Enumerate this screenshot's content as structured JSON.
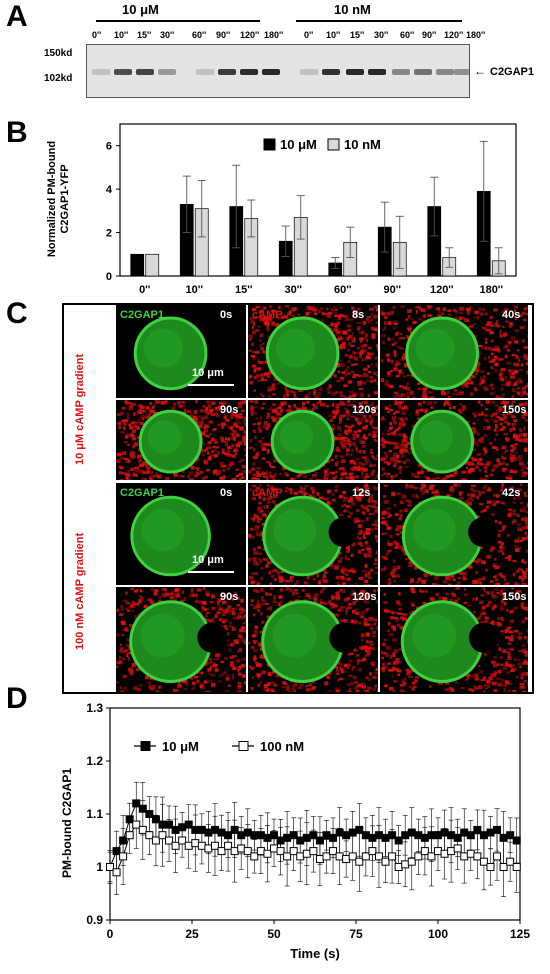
{
  "panels": {
    "a": "A",
    "b": "B",
    "c": "C",
    "d": "D"
  },
  "blot": {
    "group1": "10 μM",
    "group2": "10 nM",
    "lanes1": [
      "0''",
      "10''",
      "15''",
      "30''",
      "60''",
      "90''",
      "120''",
      "180''"
    ],
    "lanes2": [
      "0''",
      "10''",
      "15''",
      "30''",
      "60''",
      "90''",
      "120''",
      "180''"
    ],
    "mw_markers": [
      "150kd",
      "102kd"
    ],
    "protein": "C2GAP1",
    "arrow": "←",
    "band_intensity_1": [
      0.15,
      0.75,
      0.8,
      0.35,
      0.15,
      0.85,
      0.92,
      0.95
    ],
    "band_intensity_2": [
      0.15,
      0.9,
      0.95,
      0.95,
      0.45,
      0.55,
      0.45,
      0.4
    ]
  },
  "micro": {
    "side_label_top": "10 μM cAMP gradient",
    "side_label_bottom": "100 nM  cAMP gradient",
    "scale_bar": "10 μm",
    "channel_green": "C2GAP1",
    "channel_red": "cAMP",
    "top_times": [
      "0s",
      "8s",
      "40s",
      "90s",
      "120s",
      "150s"
    ],
    "bottom_times": [
      "0s",
      "12s",
      "42s",
      "90s",
      "120s",
      "150s"
    ],
    "colors": {
      "green": "#3fd13f",
      "red": "#e01010"
    }
  },
  "chart_data": [
    {
      "type": "bar",
      "categories": [
        "0''",
        "10''",
        "15''",
        "30''",
        "60''",
        "90''",
        "120''",
        "180''"
      ],
      "series": [
        {
          "name": "10 μM",
          "values": [
            1.0,
            3.3,
            3.2,
            1.6,
            0.6,
            2.25,
            3.2,
            3.9
          ],
          "errors": [
            0,
            1.3,
            1.9,
            0.7,
            0.25,
            1.15,
            1.35,
            2.3
          ],
          "color": "#000000"
        },
        {
          "name": "10 nM",
          "values": [
            1.0,
            3.1,
            2.65,
            2.7,
            1.55,
            1.55,
            0.85,
            0.7
          ],
          "errors": [
            0,
            1.3,
            0.85,
            1.0,
            0.7,
            1.2,
            0.45,
            0.6
          ],
          "color": "#d9d9d9"
        }
      ],
      "ylabel_line1": "Normalized PM-bound",
      "ylabel_line2": "C2GAP1-YFP",
      "ylim": [
        0,
        7
      ],
      "yticks": [
        "0",
        "2",
        "4",
        "6"
      ],
      "legend": "top"
    },
    {
      "type": "line",
      "xlabel": "Time (s)",
      "ylabel": "PM-bound C2GAP1",
      "xlim": [
        0,
        125
      ],
      "ylim": [
        0.9,
        1.3
      ],
      "xticks": [
        "0",
        "25",
        "50",
        "75",
        "100",
        "125"
      ],
      "yticks": [
        "0.9",
        "1",
        "1.1",
        "1.2",
        "1.3"
      ],
      "legend": "top-left",
      "series": [
        {
          "name": "10 μM",
          "marker": "filled-square",
          "y": [
            1.0,
            1.03,
            1.05,
            1.09,
            1.12,
            1.11,
            1.1,
            1.09,
            1.08,
            1.08,
            1.07,
            1.075,
            1.08,
            1.07,
            1.07,
            1.065,
            1.07,
            1.065,
            1.06,
            1.07,
            1.06,
            1.065,
            1.06,
            1.06,
            1.055,
            1.06,
            1.05,
            1.055,
            1.06,
            1.05,
            1.055,
            1.06,
            1.05,
            1.06,
            1.055,
            1.065,
            1.06,
            1.065,
            1.07,
            1.06,
            1.055,
            1.06,
            1.055,
            1.06,
            1.05,
            1.06,
            1.065,
            1.06,
            1.055,
            1.06,
            1.06,
            1.065,
            1.06,
            1.055,
            1.065,
            1.06,
            1.07,
            1.06,
            1.065,
            1.07,
            1.055,
            1.06,
            1.05
          ],
          "err": 0.04
        },
        {
          "name": "100 nM",
          "marker": "open-square",
          "y": [
            1.0,
            0.99,
            1.02,
            1.06,
            1.08,
            1.07,
            1.06,
            1.05,
            1.06,
            1.05,
            1.04,
            1.05,
            1.04,
            1.045,
            1.04,
            1.035,
            1.04,
            1.03,
            1.04,
            1.03,
            1.035,
            1.03,
            1.02,
            1.03,
            1.025,
            1.035,
            1.03,
            1.02,
            1.03,
            1.02,
            1.025,
            1.03,
            1.015,
            1.02,
            1.03,
            1.02,
            1.015,
            1.02,
            1.01,
            1.02,
            1.03,
            1.02,
            1.01,
            1.02,
            1.0,
            1.005,
            1.01,
            1.02,
            1.03,
            1.02,
            1.03,
            1.025,
            1.03,
            1.035,
            1.02,
            1.025,
            1.02,
            1.01,
            1.0,
            1.02,
            1.0,
            1.01,
            1.0
          ],
          "err": 0.045
        }
      ]
    }
  ]
}
